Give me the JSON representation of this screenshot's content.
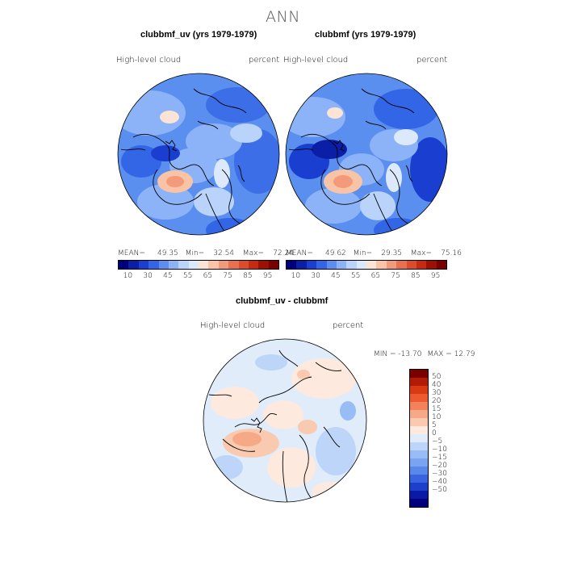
{
  "figure": {
    "title": "ANN"
  },
  "panels": [
    {
      "id": "clubbmf_uv",
      "title": "clubbmf_uv (yrs 1979-1979)",
      "left_label": "High-level  cloud",
      "right_label": "percent",
      "stats": {
        "mean_label": "MEAN=",
        "mean": "49.35",
        "min_label": "Min=",
        "min": "32.54",
        "max_label": "Max=",
        "max": "72.24"
      }
    },
    {
      "id": "clubbmf",
      "title": "clubbmf (yrs 1979-1979)",
      "left_label": "High-level  cloud",
      "right_label": "percent",
      "stats": {
        "mean_label": "MEAN=",
        "mean": "49.62",
        "min_label": "Min=",
        "min": "29.35",
        "max_label": "Max=",
        "max": "75.16"
      }
    },
    {
      "id": "diff",
      "title": "clubbmf_uv - clubbmf",
      "left_label": "High-level  cloud",
      "right_label": "percent",
      "stats": {
        "min_label": "MIN = ",
        "min": "-13.70",
        "max_label": "MAX = ",
        "max": "12.79"
      }
    }
  ],
  "colorbar_abs": {
    "colors": [
      "#00007f",
      "#0a1fa6",
      "#1a3fd0",
      "#3366e6",
      "#5c8ef2",
      "#8cb3f7",
      "#b9d3fa",
      "#dce9fb",
      "#fbe4d6",
      "#f9c4a6",
      "#f39a7a",
      "#e9704f",
      "#dc4c2c",
      "#c52a12",
      "#9e1003",
      "#7a0000"
    ],
    "labels": [
      "10",
      "30",
      "45",
      "55",
      "65",
      "75",
      "85",
      "95"
    ]
  },
  "colorbar_diff": {
    "colors": [
      "#7a0000",
      "#b01c06",
      "#d93a16",
      "#ee5a30",
      "#f3825c",
      "#f6a987",
      "#f9cab0",
      "#fde9dd",
      "#e1ecfb",
      "#bcd5f8",
      "#98bcf5",
      "#7aa3f0",
      "#5a87ea",
      "#3a64df",
      "#1d3fc9",
      "#0a1aa6",
      "#00007f"
    ],
    "labels": [
      "50",
      "40",
      "30",
      "20",
      "15",
      "10",
      "5",
      "0",
      "−5",
      "−10",
      "−15",
      "−20",
      "−30",
      "−40",
      "−50"
    ]
  },
  "chart_data": [
    {
      "type": "heatmap",
      "title": "clubbmf_uv (yrs 1979-1979)",
      "variable": "High-level cloud",
      "units": "percent",
      "projection": "polar stereographic (north pole)",
      "mean": 49.35,
      "min": 32.54,
      "max": 72.24,
      "levels": [
        10,
        30,
        45,
        55,
        65,
        75,
        85,
        95
      ]
    },
    {
      "type": "heatmap",
      "title": "clubbmf (yrs 1979-1979)",
      "variable": "High-level cloud",
      "units": "percent",
      "projection": "polar stereographic (north pole)",
      "mean": 49.62,
      "min": 29.35,
      "max": 75.16,
      "levels": [
        10,
        30,
        45,
        55,
        65,
        75,
        85,
        95
      ]
    },
    {
      "type": "heatmap",
      "title": "clubbmf_uv - clubbmf",
      "variable": "High-level cloud",
      "units": "percent",
      "projection": "polar stereographic (north pole)",
      "min": -13.7,
      "max": 12.79,
      "levels": [
        -50,
        -40,
        -30,
        -20,
        -15,
        -10,
        -5,
        0,
        5,
        10,
        15,
        20,
        30,
        40,
        50
      ]
    }
  ]
}
